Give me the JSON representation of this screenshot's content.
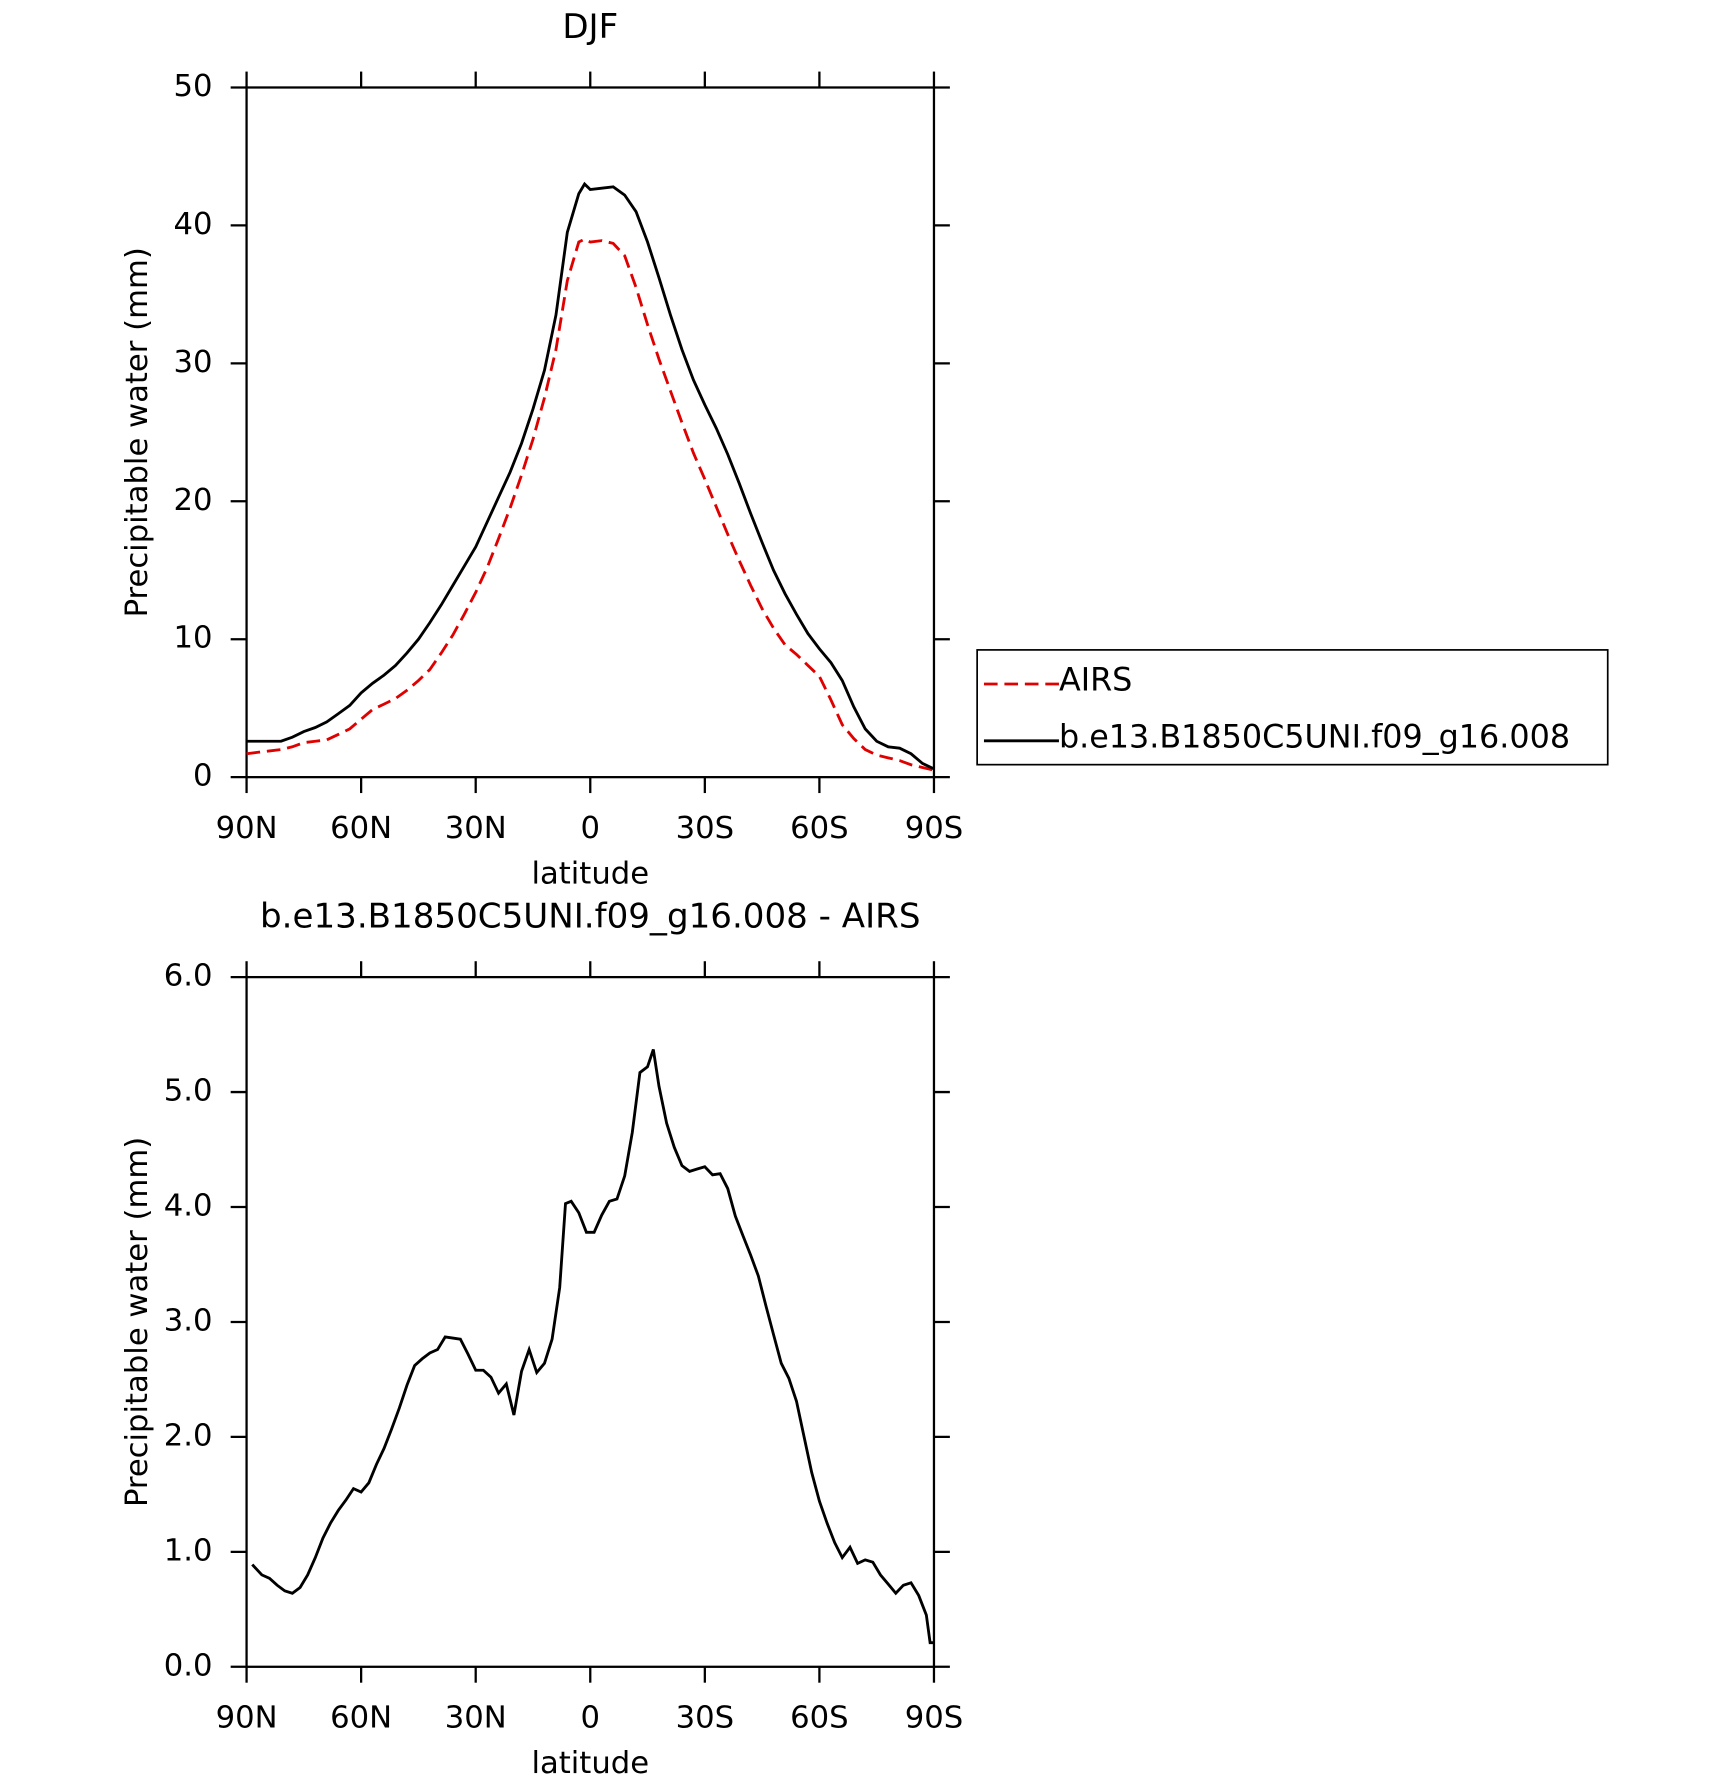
{
  "chart_data": [
    {
      "type": "line",
      "title": "DJF",
      "xlabel": "latitude",
      "ylabel": "Precipitable water (mm)",
      "xlim": [
        90,
        -90
      ],
      "xticks": [
        {
          "value": 90,
          "label": "90N"
        },
        {
          "value": 60,
          "label": "60N"
        },
        {
          "value": 30,
          "label": "30N"
        },
        0,
        {
          "value": -30,
          "label": "30S"
        },
        {
          "value": -60,
          "label": "60S"
        },
        {
          "value": -90,
          "label": "90S"
        }
      ],
      "ylim": [
        0,
        50
      ],
      "yticks": [
        0,
        10,
        20,
        30,
        40,
        50
      ],
      "legend": "right",
      "x": [
        90,
        87,
        84,
        81,
        78,
        75,
        72,
        69,
        66,
        63,
        60,
        57,
        54,
        51,
        48,
        45,
        42,
        39,
        36,
        33,
        30,
        27,
        24,
        21,
        18,
        15,
        12,
        9,
        6,
        3,
        1.5,
        0,
        -3,
        -6,
        -9,
        -12,
        -15,
        -18,
        -21,
        -24,
        -27,
        -30,
        -33,
        -36,
        -39,
        -42,
        -45,
        -48,
        -51,
        -54,
        -57,
        -60,
        -63,
        -66,
        -69,
        -72,
        -75,
        -78,
        -81,
        -84,
        -87,
        -90
      ],
      "series": [
        {
          "name": "AIRS",
          "color": "#e00000",
          "line_style": "dashed",
          "values": [
            1.7,
            1.8,
            1.9,
            2.0,
            2.2,
            2.5,
            2.6,
            2.7,
            3.1,
            3.5,
            4.2,
            4.9,
            5.3,
            5.7,
            6.3,
            7.0,
            7.8,
            9.0,
            10.3,
            11.8,
            13.4,
            15.2,
            17.3,
            19.5,
            21.9,
            24.5,
            27.5,
            31.0,
            36.0,
            38.8,
            39.0,
            38.8,
            38.9,
            38.7,
            37.8,
            35.5,
            32.8,
            30.3,
            28.0,
            25.7,
            23.5,
            21.6,
            19.6,
            17.6,
            15.7,
            13.9,
            12.2,
            10.8,
            9.6,
            8.9,
            8.1,
            7.3,
            5.6,
            3.8,
            2.8,
            2.0,
            1.6,
            1.4,
            1.2,
            0.9,
            0.7,
            0.5
          ]
        },
        {
          "name": "b.e13.B1850C5UNI.f09_g16.008",
          "color": "#000000",
          "line_style": "solid",
          "values": [
            2.6,
            2.6,
            2.6,
            2.6,
            2.9,
            3.3,
            3.6,
            4.0,
            4.6,
            5.2,
            6.1,
            6.8,
            7.4,
            8.1,
            9.0,
            10.0,
            11.2,
            12.5,
            13.9,
            15.3,
            16.7,
            18.5,
            20.3,
            22.1,
            24.2,
            26.7,
            29.5,
            33.5,
            39.5,
            42.3,
            43.0,
            42.6,
            42.7,
            42.8,
            42.2,
            41.0,
            38.8,
            36.2,
            33.5,
            31.0,
            28.8,
            27.0,
            25.3,
            23.4,
            21.3,
            19.1,
            17.0,
            15.0,
            13.3,
            11.8,
            10.4,
            9.3,
            8.3,
            7.0,
            5.1,
            3.5,
            2.6,
            2.2,
            2.1,
            1.7,
            1.0,
            0.6
          ]
        }
      ]
    },
    {
      "type": "line",
      "title": "b.e13.B1850C5UNI.f09_g16.008 - AIRS",
      "xlabel": "latitude",
      "ylabel": "Precipitable water (mm)",
      "xlim": [
        90,
        -90
      ],
      "xticks": [
        {
          "value": 90,
          "label": "90N"
        },
        {
          "value": 60,
          "label": "60N"
        },
        {
          "value": 30,
          "label": "30N"
        },
        0,
        {
          "value": -30,
          "label": "30S"
        },
        {
          "value": -60,
          "label": "60S"
        },
        {
          "value": -90,
          "label": "90S"
        }
      ],
      "ylim": [
        0,
        6
      ],
      "yticks": [
        {
          "value": 0,
          "label": "0.0"
        },
        {
          "value": 1,
          "label": "1.0"
        },
        {
          "value": 2,
          "label": "2.0"
        },
        {
          "value": 3,
          "label": "3.0"
        },
        {
          "value": 4,
          "label": "4.0"
        },
        {
          "value": 5,
          "label": "5.0"
        },
        {
          "value": 6,
          "label": "6.0"
        }
      ],
      "x": [
        88.5,
        86,
        84,
        82,
        80,
        78,
        76,
        74,
        72,
        70,
        68,
        66,
        64,
        62,
        60,
        58,
        56,
        54,
        52,
        50,
        48,
        46,
        44,
        42,
        40,
        38,
        36,
        34,
        32,
        30,
        28,
        26,
        24,
        22,
        20,
        18,
        16,
        14,
        12,
        10,
        8,
        6.5,
        5,
        3,
        1,
        -1,
        -3,
        -5,
        -7,
        -9,
        -11,
        -13,
        -15,
        -16.5,
        -18,
        -20,
        -22,
        -24,
        -26,
        -28,
        -30,
        -32,
        -34,
        -36,
        -38,
        -40,
        -42,
        -44,
        -46,
        -48,
        -50,
        -52,
        -54,
        -56,
        -58,
        -60,
        -62,
        -64,
        -66,
        -68,
        -70,
        -72,
        -74,
        -76,
        -78,
        -80,
        -82,
        -84,
        -86,
        -88,
        -89,
        -90
      ],
      "series": [
        {
          "color": "#000000",
          "line_style": "solid",
          "values": [
            0.89,
            0.8,
            0.77,
            0.71,
            0.66,
            0.64,
            0.69,
            0.8,
            0.95,
            1.12,
            1.25,
            1.36,
            1.45,
            1.55,
            1.52,
            1.6,
            1.76,
            1.9,
            2.07,
            2.25,
            2.45,
            2.62,
            2.68,
            2.73,
            2.76,
            2.87,
            2.86,
            2.85,
            2.72,
            2.58,
            2.58,
            2.52,
            2.38,
            2.46,
            2.19,
            2.57,
            2.76,
            2.56,
            2.64,
            2.85,
            3.3,
            4.03,
            4.05,
            3.95,
            3.78,
            3.78,
            3.93,
            4.05,
            4.07,
            4.27,
            4.65,
            5.17,
            5.22,
            5.37,
            5.05,
            4.73,
            4.52,
            4.36,
            4.31,
            4.33,
            4.35,
            4.28,
            4.29,
            4.16,
            3.92,
            3.75,
            3.58,
            3.4,
            3.14,
            2.89,
            2.64,
            2.51,
            2.31,
            2.0,
            1.69,
            1.44,
            1.25,
            1.08,
            0.95,
            1.04,
            0.9,
            0.93,
            0.91,
            0.8,
            0.72,
            0.64,
            0.71,
            0.73,
            0.62,
            0.45,
            0.21,
            0.21
          ]
        }
      ]
    }
  ]
}
